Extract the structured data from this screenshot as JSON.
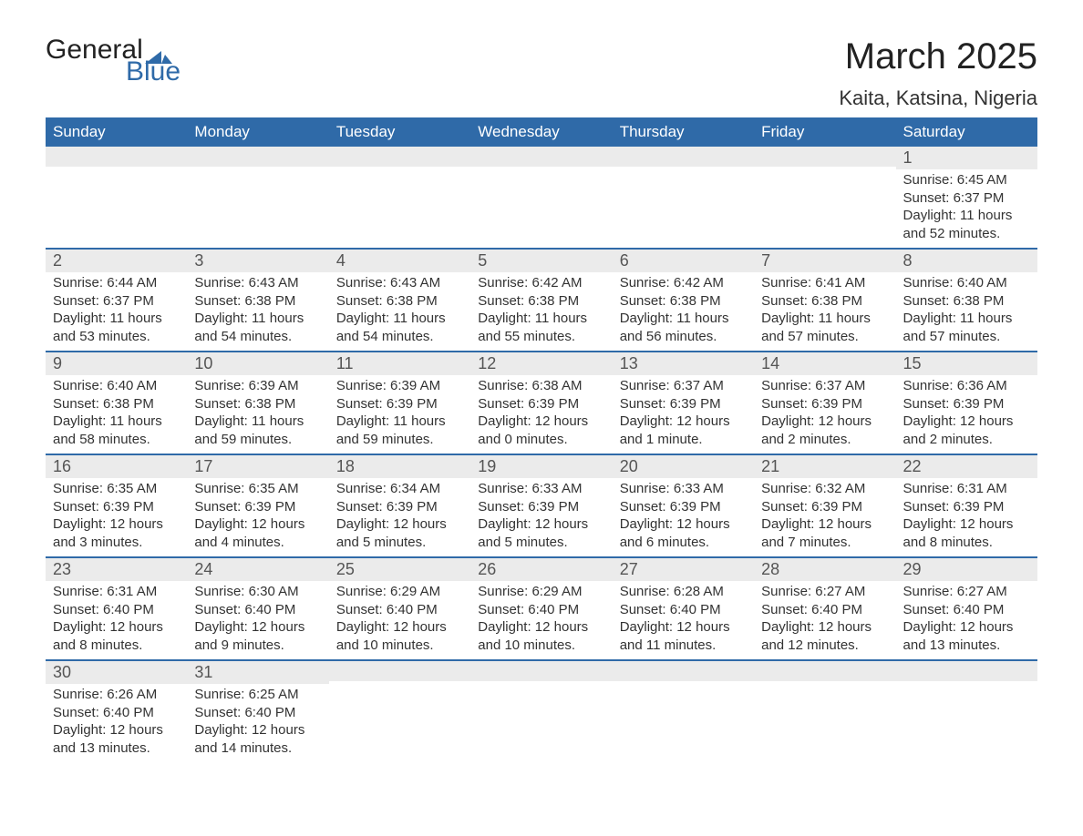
{
  "logo": {
    "text_top": "General",
    "text_bottom": "Blue",
    "mark_color": "#2f6aa8"
  },
  "title": "March 2025",
  "location": "Kaita, Katsina, Nigeria",
  "header_bg": "#2f6aa8",
  "header_fg": "#ffffff",
  "daynum_bg": "#ebebeb",
  "divider_color": "#2f6aa8",
  "day_names": [
    "Sunday",
    "Monday",
    "Tuesday",
    "Wednesday",
    "Thursday",
    "Friday",
    "Saturday"
  ],
  "weeks": [
    [
      null,
      null,
      null,
      null,
      null,
      null,
      {
        "n": "1",
        "sr": "Sunrise: 6:45 AM",
        "ss": "Sunset: 6:37 PM",
        "dl1": "Daylight: 11 hours",
        "dl2": "and 52 minutes."
      }
    ],
    [
      {
        "n": "2",
        "sr": "Sunrise: 6:44 AM",
        "ss": "Sunset: 6:37 PM",
        "dl1": "Daylight: 11 hours",
        "dl2": "and 53 minutes."
      },
      {
        "n": "3",
        "sr": "Sunrise: 6:43 AM",
        "ss": "Sunset: 6:38 PM",
        "dl1": "Daylight: 11 hours",
        "dl2": "and 54 minutes."
      },
      {
        "n": "4",
        "sr": "Sunrise: 6:43 AM",
        "ss": "Sunset: 6:38 PM",
        "dl1": "Daylight: 11 hours",
        "dl2": "and 54 minutes."
      },
      {
        "n": "5",
        "sr": "Sunrise: 6:42 AM",
        "ss": "Sunset: 6:38 PM",
        "dl1": "Daylight: 11 hours",
        "dl2": "and 55 minutes."
      },
      {
        "n": "6",
        "sr": "Sunrise: 6:42 AM",
        "ss": "Sunset: 6:38 PM",
        "dl1": "Daylight: 11 hours",
        "dl2": "and 56 minutes."
      },
      {
        "n": "7",
        "sr": "Sunrise: 6:41 AM",
        "ss": "Sunset: 6:38 PM",
        "dl1": "Daylight: 11 hours",
        "dl2": "and 57 minutes."
      },
      {
        "n": "8",
        "sr": "Sunrise: 6:40 AM",
        "ss": "Sunset: 6:38 PM",
        "dl1": "Daylight: 11 hours",
        "dl2": "and 57 minutes."
      }
    ],
    [
      {
        "n": "9",
        "sr": "Sunrise: 6:40 AM",
        "ss": "Sunset: 6:38 PM",
        "dl1": "Daylight: 11 hours",
        "dl2": "and 58 minutes."
      },
      {
        "n": "10",
        "sr": "Sunrise: 6:39 AM",
        "ss": "Sunset: 6:38 PM",
        "dl1": "Daylight: 11 hours",
        "dl2": "and 59 minutes."
      },
      {
        "n": "11",
        "sr": "Sunrise: 6:39 AM",
        "ss": "Sunset: 6:39 PM",
        "dl1": "Daylight: 11 hours",
        "dl2": "and 59 minutes."
      },
      {
        "n": "12",
        "sr": "Sunrise: 6:38 AM",
        "ss": "Sunset: 6:39 PM",
        "dl1": "Daylight: 12 hours",
        "dl2": "and 0 minutes."
      },
      {
        "n": "13",
        "sr": "Sunrise: 6:37 AM",
        "ss": "Sunset: 6:39 PM",
        "dl1": "Daylight: 12 hours",
        "dl2": "and 1 minute."
      },
      {
        "n": "14",
        "sr": "Sunrise: 6:37 AM",
        "ss": "Sunset: 6:39 PM",
        "dl1": "Daylight: 12 hours",
        "dl2": "and 2 minutes."
      },
      {
        "n": "15",
        "sr": "Sunrise: 6:36 AM",
        "ss": "Sunset: 6:39 PM",
        "dl1": "Daylight: 12 hours",
        "dl2": "and 2 minutes."
      }
    ],
    [
      {
        "n": "16",
        "sr": "Sunrise: 6:35 AM",
        "ss": "Sunset: 6:39 PM",
        "dl1": "Daylight: 12 hours",
        "dl2": "and 3 minutes."
      },
      {
        "n": "17",
        "sr": "Sunrise: 6:35 AM",
        "ss": "Sunset: 6:39 PM",
        "dl1": "Daylight: 12 hours",
        "dl2": "and 4 minutes."
      },
      {
        "n": "18",
        "sr": "Sunrise: 6:34 AM",
        "ss": "Sunset: 6:39 PM",
        "dl1": "Daylight: 12 hours",
        "dl2": "and 5 minutes."
      },
      {
        "n": "19",
        "sr": "Sunrise: 6:33 AM",
        "ss": "Sunset: 6:39 PM",
        "dl1": "Daylight: 12 hours",
        "dl2": "and 5 minutes."
      },
      {
        "n": "20",
        "sr": "Sunrise: 6:33 AM",
        "ss": "Sunset: 6:39 PM",
        "dl1": "Daylight: 12 hours",
        "dl2": "and 6 minutes."
      },
      {
        "n": "21",
        "sr": "Sunrise: 6:32 AM",
        "ss": "Sunset: 6:39 PM",
        "dl1": "Daylight: 12 hours",
        "dl2": "and 7 minutes."
      },
      {
        "n": "22",
        "sr": "Sunrise: 6:31 AM",
        "ss": "Sunset: 6:39 PM",
        "dl1": "Daylight: 12 hours",
        "dl2": "and 8 minutes."
      }
    ],
    [
      {
        "n": "23",
        "sr": "Sunrise: 6:31 AM",
        "ss": "Sunset: 6:40 PM",
        "dl1": "Daylight: 12 hours",
        "dl2": "and 8 minutes."
      },
      {
        "n": "24",
        "sr": "Sunrise: 6:30 AM",
        "ss": "Sunset: 6:40 PM",
        "dl1": "Daylight: 12 hours",
        "dl2": "and 9 minutes."
      },
      {
        "n": "25",
        "sr": "Sunrise: 6:29 AM",
        "ss": "Sunset: 6:40 PM",
        "dl1": "Daylight: 12 hours",
        "dl2": "and 10 minutes."
      },
      {
        "n": "26",
        "sr": "Sunrise: 6:29 AM",
        "ss": "Sunset: 6:40 PM",
        "dl1": "Daylight: 12 hours",
        "dl2": "and 10 minutes."
      },
      {
        "n": "27",
        "sr": "Sunrise: 6:28 AM",
        "ss": "Sunset: 6:40 PM",
        "dl1": "Daylight: 12 hours",
        "dl2": "and 11 minutes."
      },
      {
        "n": "28",
        "sr": "Sunrise: 6:27 AM",
        "ss": "Sunset: 6:40 PM",
        "dl1": "Daylight: 12 hours",
        "dl2": "and 12 minutes."
      },
      {
        "n": "29",
        "sr": "Sunrise: 6:27 AM",
        "ss": "Sunset: 6:40 PM",
        "dl1": "Daylight: 12 hours",
        "dl2": "and 13 minutes."
      }
    ],
    [
      {
        "n": "30",
        "sr": "Sunrise: 6:26 AM",
        "ss": "Sunset: 6:40 PM",
        "dl1": "Daylight: 12 hours",
        "dl2": "and 13 minutes."
      },
      {
        "n": "31",
        "sr": "Sunrise: 6:25 AM",
        "ss": "Sunset: 6:40 PM",
        "dl1": "Daylight: 12 hours",
        "dl2": "and 14 minutes."
      },
      null,
      null,
      null,
      null,
      null
    ]
  ]
}
